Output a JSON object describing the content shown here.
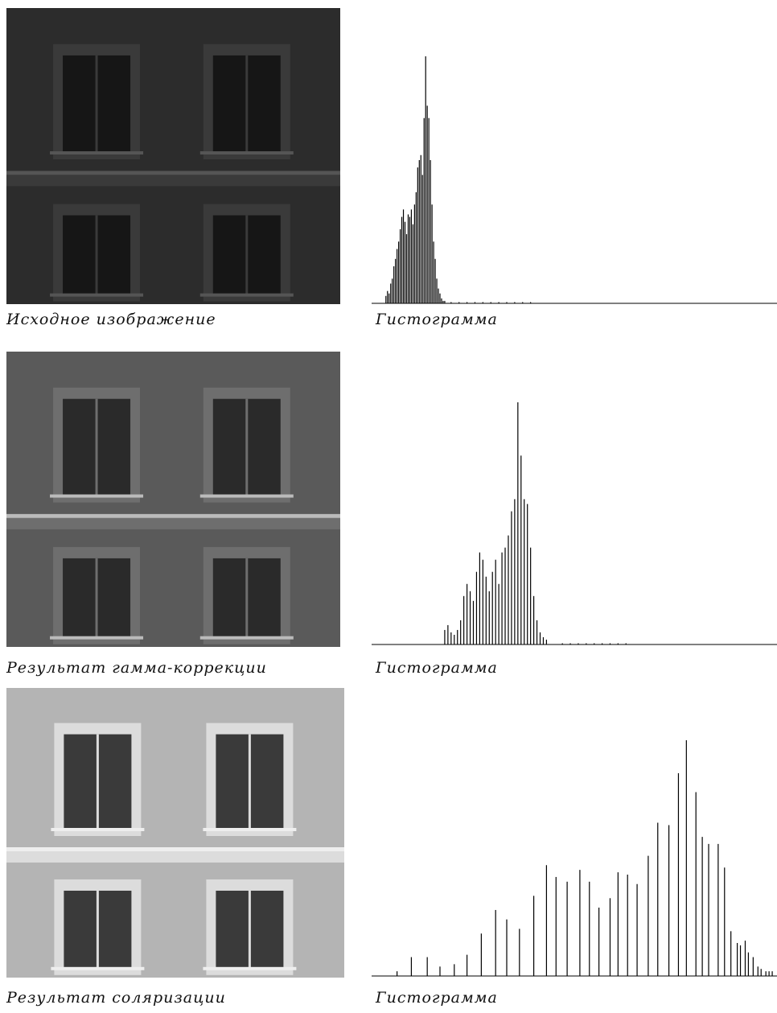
{
  "panels": [
    {
      "caption": "Исходное изображение",
      "histogram_caption": "Гистограмма"
    },
    {
      "caption": "Результат гамма-коррекции",
      "histogram_caption": "Гистограмма"
    },
    {
      "caption": "Результат соляризации",
      "histogram_caption": "Гистограмма"
    }
  ],
  "chart_data": [
    {
      "type": "bar",
      "color": "#000000",
      "xlim": [
        0,
        255
      ],
      "ylim": [
        0,
        100
      ],
      "x": [
        9,
        10,
        11,
        12,
        13,
        14,
        15,
        16,
        17,
        18,
        19,
        20,
        21,
        22,
        23,
        24,
        25,
        26,
        27,
        28,
        29,
        30,
        31,
        32,
        33,
        34,
        35,
        36,
        37,
        38,
        39,
        40,
        41,
        42,
        43,
        44,
        45,
        46,
        50,
        55,
        60,
        65,
        70,
        75,
        80,
        85,
        90,
        95,
        100
      ],
      "values": [
        3,
        5,
        4,
        8,
        10,
        15,
        18,
        22,
        25,
        30,
        35,
        38,
        33,
        28,
        36,
        35,
        38,
        32,
        40,
        45,
        55,
        58,
        60,
        52,
        75,
        100,
        80,
        75,
        58,
        40,
        25,
        18,
        10,
        6,
        4,
        2,
        1,
        1,
        0.5,
        0.5,
        0.5,
        0.5,
        0.5,
        0.5,
        0.5,
        0.5,
        0.5,
        0.5,
        0.5
      ]
    },
    {
      "type": "bar",
      "color": "#000000",
      "xlim": [
        0,
        255
      ],
      "ylim": [
        0,
        100
      ],
      "x": [
        46,
        48,
        50,
        52,
        54,
        56,
        58,
        60,
        62,
        64,
        66,
        68,
        70,
        72,
        74,
        76,
        78,
        80,
        82,
        84,
        86,
        88,
        90,
        92,
        94,
        96,
        98,
        100,
        102,
        104,
        106,
        108,
        110,
        120,
        125,
        130,
        135,
        140,
        145,
        150,
        155,
        160
      ],
      "values": [
        6,
        8,
        5,
        4,
        6,
        10,
        20,
        25,
        22,
        18,
        30,
        38,
        35,
        28,
        22,
        30,
        35,
        25,
        38,
        40,
        45,
        55,
        60,
        100,
        78,
        60,
        58,
        40,
        20,
        10,
        5,
        3,
        2,
        0.5,
        0.5,
        0.5,
        0.5,
        0.5,
        0.5,
        0.5,
        0.5,
        0.5
      ]
    },
    {
      "type": "bar",
      "color": "#000000",
      "xlim": [
        0,
        255
      ],
      "ylim": [
        0,
        100
      ],
      "x": [
        16,
        25,
        35,
        43,
        52,
        60,
        69,
        78,
        85,
        93,
        102,
        110,
        116,
        123,
        131,
        137,
        143,
        150,
        155,
        161,
        167,
        174,
        180,
        187,
        193,
        198,
        204,
        208,
        212,
        218,
        222,
        226,
        230,
        232,
        235,
        237,
        240,
        243,
        245,
        248,
        250,
        252
      ],
      "values": [
        2,
        8,
        8,
        4,
        5,
        9,
        18,
        28,
        24,
        20,
        34,
        47,
        42,
        40,
        45,
        40,
        29,
        33,
        44,
        43,
        39,
        51,
        65,
        64,
        86,
        100,
        78,
        59,
        56,
        56,
        46,
        19,
        14,
        13,
        15,
        10,
        8,
        4,
        3,
        2,
        2,
        2
      ]
    }
  ]
}
